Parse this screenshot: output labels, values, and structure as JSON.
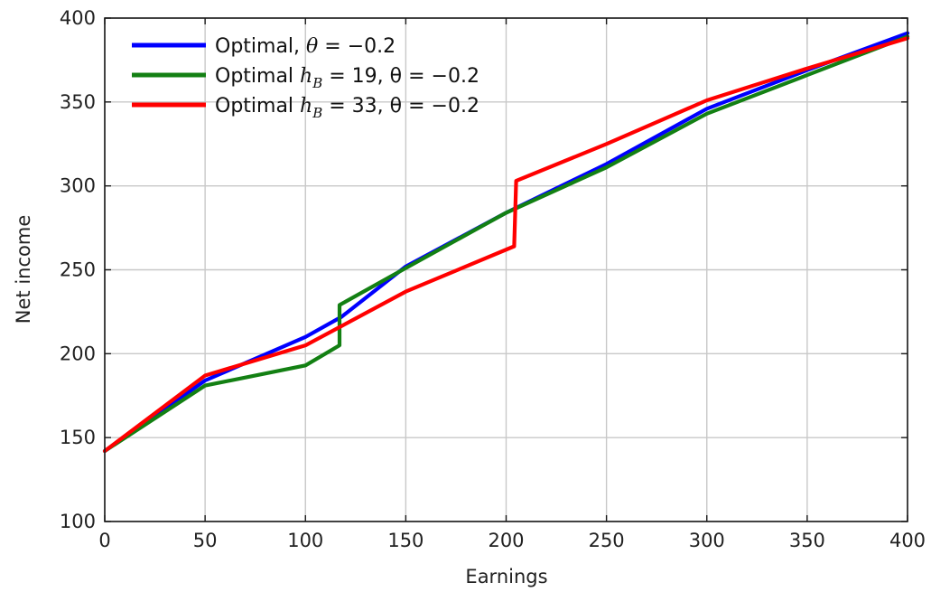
{
  "chart_data": {
    "type": "line",
    "title": "",
    "xlabel": "Earnings",
    "ylabel": "Net income",
    "xlim": [
      0,
      400
    ],
    "ylim": [
      100,
      400
    ],
    "xticks": [
      0,
      50,
      100,
      150,
      200,
      250,
      300,
      350,
      400
    ],
    "yticks": [
      100,
      150,
      200,
      250,
      300,
      350,
      400
    ],
    "xtick_labels": [
      "0",
      "50",
      "100",
      "150",
      "200",
      "250",
      "300",
      "350",
      "400"
    ],
    "ytick_labels": [
      "100",
      "150",
      "200",
      "250",
      "300",
      "350",
      "400"
    ],
    "grid": true,
    "legend_position": "top-left",
    "series": [
      {
        "name": "Optimal, θ = −0.2",
        "color": "#0000ff",
        "points": [
          [
            0,
            142
          ],
          [
            50,
            184
          ],
          [
            100,
            210
          ],
          [
            118,
            222
          ],
          [
            150,
            252
          ],
          [
            200,
            284
          ],
          [
            250,
            313
          ],
          [
            300,
            346
          ],
          [
            350,
            369
          ],
          [
            400,
            391
          ]
        ]
      },
      {
        "name": "Optimal hB = 19, θ = −0.2",
        "color": "#138013",
        "points": [
          [
            0,
            142
          ],
          [
            50,
            181
          ],
          [
            100,
            193
          ],
          [
            117,
            205
          ],
          [
            117,
            229
          ],
          [
            150,
            251
          ],
          [
            200,
            284
          ],
          [
            250,
            311
          ],
          [
            300,
            343
          ],
          [
            350,
            366
          ],
          [
            400,
            389
          ]
        ]
      },
      {
        "name": "Optimal hB = 33, θ = −0.2",
        "color": "#ff0000",
        "points": [
          [
            0,
            142
          ],
          [
            50,
            187
          ],
          [
            100,
            205
          ],
          [
            150,
            237
          ],
          [
            204,
            264
          ],
          [
            205,
            303
          ],
          [
            250,
            325
          ],
          [
            300,
            351
          ],
          [
            350,
            370
          ],
          [
            400,
            388
          ]
        ]
      }
    ],
    "legend": [
      {
        "prefix": "Optimal,",
        "math": "θ",
        "sub": "",
        "rest": " = −0.2"
      },
      {
        "prefix": "Optimal",
        "math": "h",
        "sub": "B",
        "rest": " = 19, θ = −0.2"
      },
      {
        "prefix": "Optimal",
        "math": "h",
        "sub": "B",
        "rest": " = 33, θ = −0.2"
      }
    ]
  }
}
